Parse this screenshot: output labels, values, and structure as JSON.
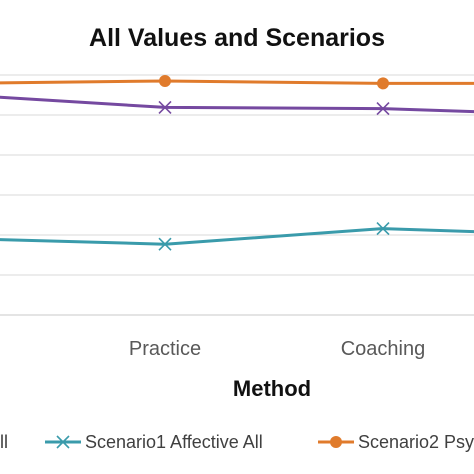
{
  "chart_data": {
    "type": "line",
    "title": "All Values and Scenarios",
    "xlabel": "Method",
    "ylabel": "",
    "categories": [
      "",
      "Practice",
      "Coaching",
      ""
    ],
    "x": [
      0,
      1,
      2,
      3
    ],
    "ylim": [
      0,
      1
    ],
    "grid": true,
    "legend_placement": "bottom",
    "series": [
      {
        "name": "Scenario1 Affective All",
        "color": "#3a9bab",
        "marker": "asterisk",
        "values": [
          0.32,
          0.295,
          0.36,
          0.33
        ]
      },
      {
        "name": "Scenario2 Psy",
        "color": "#e07b2c",
        "marker": "circle",
        "values": [
          0.965,
          0.975,
          0.965,
          0.965
        ]
      },
      {
        "name": "",
        "color": "#7549a0",
        "marker": "asterisk",
        "values": [
          0.92,
          0.865,
          0.86,
          0.83
        ]
      }
    ],
    "legend_partial_label": "ll"
  }
}
